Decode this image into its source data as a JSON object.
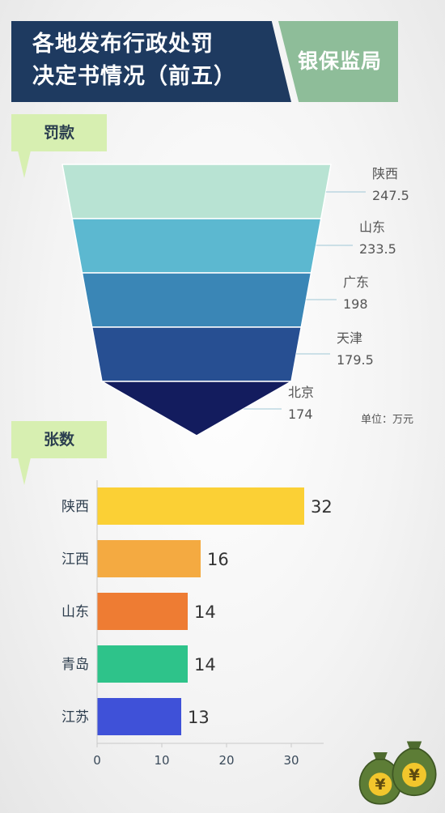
{
  "header": {
    "title_line1": "各地发布行政处罚",
    "title_line2": "决定书情况（前五）",
    "source": "银保监局"
  },
  "funnel_section": {
    "tag": "罚款",
    "unit": "单位：万元"
  },
  "bar_section": {
    "tag": "张数"
  },
  "chart_data": [
    {
      "type": "funnel",
      "title": "罚款",
      "categories": [
        "陕西",
        "山东",
        "广东",
        "天津",
        "北京"
      ],
      "values": [
        247.5,
        233.5,
        198,
        179.5,
        174
      ],
      "value_labels": [
        "247.5",
        "233.5",
        "198",
        "179.5",
        "174"
      ],
      "unit": "单位：万元",
      "colors": [
        "#b8e3d3",
        "#5cb8d0",
        "#3a86b6",
        "#274f92",
        "#131c5e"
      ]
    },
    {
      "type": "bar",
      "orientation": "horizontal",
      "title": "张数",
      "categories": [
        "陕西",
        "江西",
        "山东",
        "青岛",
        "江苏"
      ],
      "values": [
        32,
        16,
        14,
        14,
        13
      ],
      "xlim": [
        0,
        35
      ],
      "xticks": [
        0,
        10,
        20,
        30
      ],
      "colors": [
        "#fbd035",
        "#f4aa41",
        "#ee7c33",
        "#2ec38a",
        "#3f51d8"
      ],
      "grid": false,
      "legend": "none"
    }
  ],
  "decoration": {
    "icon": "money-bag-icon",
    "symbol": "¥"
  }
}
